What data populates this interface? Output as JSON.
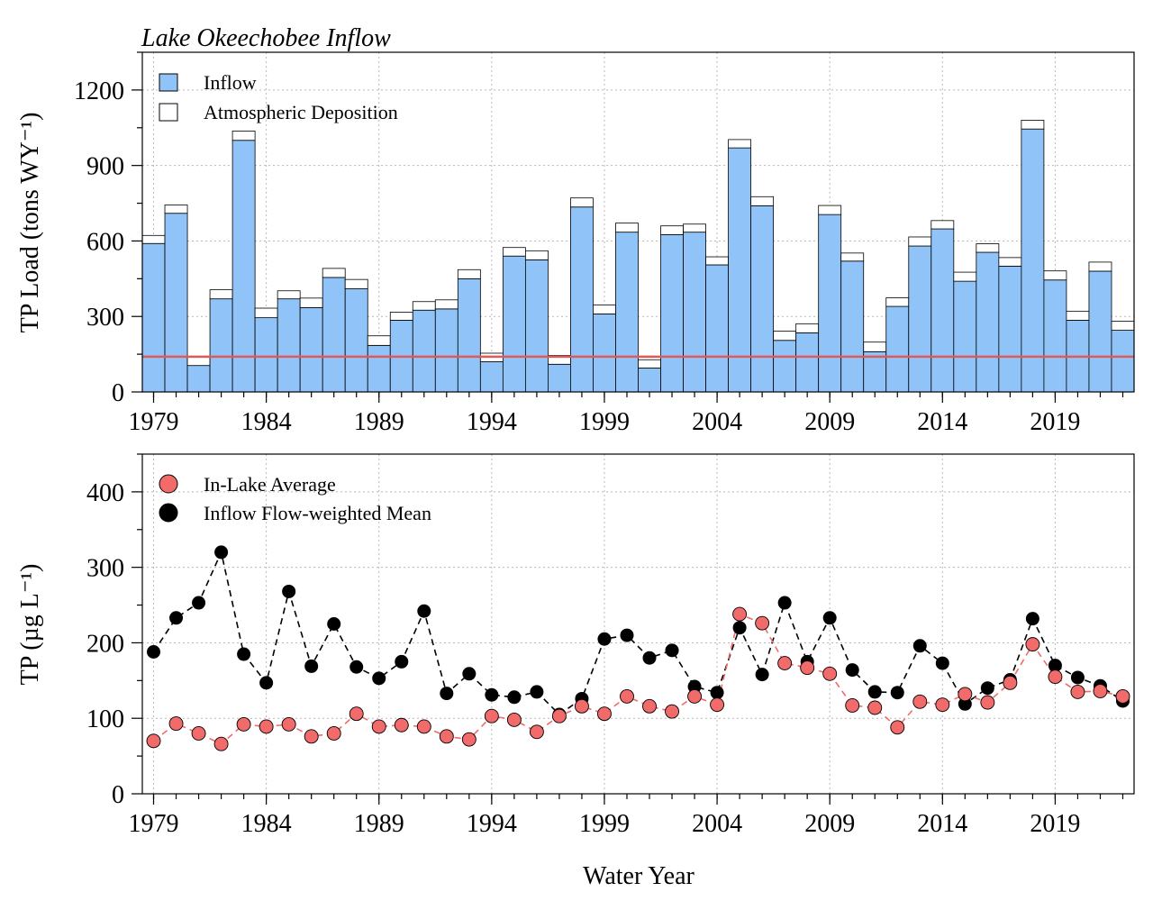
{
  "chart_data": [
    {
      "type": "bar",
      "title": "Lake Okeechobee Inflow",
      "ylabel": "TP Load (tons WY⁻¹)",
      "xlabel": "",
      "ylim": [
        0,
        1350
      ],
      "yticks": [
        0,
        300,
        600,
        900,
        1200
      ],
      "xticks": [
        1979,
        1984,
        1989,
        1994,
        1999,
        2004,
        2009,
        2014,
        2019
      ],
      "grid": true,
      "legend_position": "top-left",
      "stacked": true,
      "reference_line": {
        "value": 140,
        "color": "#E05A5A"
      },
      "categories": [
        1979,
        1980,
        1981,
        1982,
        1983,
        1984,
        1985,
        1986,
        1987,
        1988,
        1989,
        1990,
        1991,
        1992,
        1993,
        1994,
        1995,
        1996,
        1997,
        1998,
        1999,
        2000,
        2001,
        2002,
        2003,
        2004,
        2005,
        2006,
        2007,
        2008,
        2009,
        2010,
        2011,
        2012,
        2013,
        2014,
        2015,
        2016,
        2017,
        2018,
        2019,
        2020,
        2021,
        2022
      ],
      "series": [
        {
          "name": "Inflow",
          "color": "#90C4F8",
          "values": [
            590,
            710,
            105,
            370,
            1000,
            295,
            370,
            335,
            455,
            410,
            185,
            285,
            325,
            330,
            450,
            120,
            540,
            525,
            110,
            735,
            310,
            635,
            95,
            625,
            635,
            505,
            970,
            740,
            205,
            235,
            705,
            520,
            160,
            340,
            580,
            648,
            440,
            555,
            500,
            1045,
            445,
            285,
            480,
            245
          ]
        },
        {
          "name": "Atmospheric Deposition",
          "color": "#FFFFFF",
          "values": [
            32,
            33,
            33,
            36,
            37,
            38,
            32,
            38,
            36,
            37,
            38,
            32,
            34,
            36,
            36,
            34,
            34,
            36,
            35,
            36,
            36,
            36,
            33,
            35,
            32,
            32,
            33,
            36,
            37,
            36,
            36,
            32,
            38,
            34,
            36,
            33,
            36,
            34,
            34,
            35,
            36,
            36,
            36,
            36
          ]
        }
      ]
    },
    {
      "type": "scatter",
      "title": "",
      "ylabel": "TP (µg L⁻¹)",
      "xlabel": "Water Year",
      "ylim": [
        0,
        450
      ],
      "yticks": [
        0,
        100,
        200,
        300,
        400
      ],
      "xticks": [
        1979,
        1984,
        1989,
        1994,
        1999,
        2004,
        2009,
        2014,
        2019
      ],
      "grid": true,
      "legend_position": "top-left",
      "x": [
        1979,
        1980,
        1981,
        1982,
        1983,
        1984,
        1985,
        1986,
        1987,
        1988,
        1989,
        1990,
        1991,
        1992,
        1993,
        1994,
        1995,
        1996,
        1997,
        1998,
        1999,
        2000,
        2001,
        2002,
        2003,
        2004,
        2005,
        2006,
        2007,
        2008,
        2009,
        2010,
        2011,
        2012,
        2013,
        2014,
        2015,
        2016,
        2017,
        2018,
        2019,
        2020,
        2021,
        2022
      ],
      "series": [
        {
          "name": "In-Lake Average",
          "color": "#F26B6B",
          "values": [
            70,
            93,
            80,
            66,
            92,
            89,
            92,
            76,
            80,
            106,
            89,
            91,
            89,
            76,
            72,
            103,
            98,
            82,
            103,
            116,
            106,
            129,
            116,
            109,
            129,
            118,
            238,
            226,
            173,
            167,
            159,
            117,
            114,
            88,
            122,
            118,
            132,
            121,
            147,
            198,
            155,
            135,
            136,
            129
          ]
        },
        {
          "name": "Inflow Flow-weighted Mean",
          "color": "#000000",
          "values": [
            188,
            233,
            253,
            320,
            185,
            147,
            268,
            169,
            225,
            168,
            153,
            175,
            242,
            133,
            159,
            131,
            128,
            135,
            105,
            126,
            205,
            210,
            180,
            190,
            142,
            134,
            220,
            158,
            253,
            175,
            233,
            164,
            135,
            134,
            196,
            173,
            119,
            140,
            151,
            232,
            170,
            154,
            143,
            123
          ]
        }
      ]
    }
  ]
}
